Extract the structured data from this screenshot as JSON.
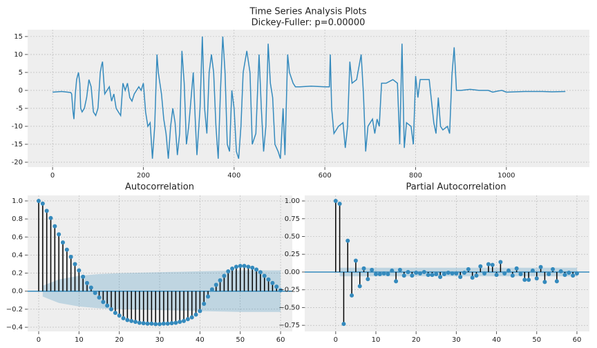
{
  "chart_data": [
    {
      "type": "line",
      "title": "Time Series Analysis Plots",
      "subtitle": "Dickey-Fuller: p=0.00000",
      "color": "#348abd",
      "grid": true,
      "xlim": [
        -55,
        1183
      ],
      "ylim": [
        -21.35,
        16.9
      ],
      "xticks": [
        0,
        200,
        400,
        600,
        800,
        1000
      ],
      "yticks": [
        -20,
        -15,
        -10,
        -5,
        0,
        5,
        10,
        15
      ],
      "x": [
        0,
        20,
        40,
        42,
        45,
        47,
        50,
        53,
        55,
        57,
        60,
        62,
        65,
        70,
        75,
        80,
        85,
        90,
        95,
        100,
        105,
        108,
        110,
        112,
        115,
        120,
        125,
        130,
        135,
        140,
        145,
        150,
        155,
        160,
        165,
        170,
        175,
        180,
        185,
        190,
        195,
        200,
        205,
        210,
        215,
        220,
        225,
        230,
        233,
        240,
        245,
        250,
        255,
        260,
        265,
        270,
        275,
        280,
        285,
        290,
        295,
        300,
        310,
        315,
        318,
        325,
        330,
        335,
        340,
        345,
        350,
        355,
        360,
        365,
        370,
        375,
        380,
        385,
        390,
        395,
        400,
        405,
        410,
        415,
        420,
        428,
        435,
        440,
        448,
        455,
        460,
        465,
        470,
        475,
        480,
        485,
        490,
        497,
        502,
        508,
        512,
        518,
        522,
        530,
        535,
        545,
        570,
        600,
        610,
        612,
        615,
        620,
        625,
        630,
        640,
        645,
        650,
        655,
        660,
        670,
        680,
        685,
        690,
        695,
        700,
        705,
        710,
        715,
        720,
        725,
        735,
        750,
        760,
        765,
        770,
        775,
        780,
        790,
        795,
        800,
        805,
        810,
        820,
        830,
        840,
        845,
        850,
        855,
        860,
        870,
        875,
        880,
        885,
        890,
        900,
        920,
        940,
        960,
        970,
        980,
        990,
        1000,
        1040,
        1080,
        1100,
        1130
      ],
      "values": [
        -0.5,
        -0.3,
        -0.6,
        -1,
        -6,
        -8,
        -1,
        3,
        4,
        5,
        2,
        -5,
        -6,
        -5,
        -2,
        3,
        1,
        -6,
        -7,
        -5,
        5,
        7,
        8,
        4,
        -1,
        0,
        1,
        -3,
        -1,
        -5,
        -6,
        -7,
        2,
        0,
        2,
        -2,
        -3,
        -1,
        0,
        1,
        0,
        2,
        -6,
        -10,
        -9,
        -19,
        -10,
        10,
        5,
        -1,
        -8,
        -12,
        -19,
        -10,
        -5,
        -9,
        -18,
        -12,
        11,
        2,
        -15,
        -10,
        5,
        -10,
        -18,
        -5,
        15,
        -5,
        -12,
        5,
        10,
        5,
        -10,
        -19,
        0,
        15,
        5,
        -15,
        -17,
        0,
        -5,
        -17,
        -19,
        -10,
        5,
        11,
        5,
        -15,
        -12,
        10,
        -5,
        -17,
        -10,
        13,
        2,
        -2,
        -15,
        -17,
        -19,
        -5,
        -18,
        10,
        5,
        2,
        1,
        1,
        1.2,
        1,
        1,
        10,
        -5,
        -12,
        -11,
        -10,
        -9,
        -16,
        -10,
        8,
        2,
        3,
        10,
        -1,
        -17,
        -10,
        -9,
        -8,
        -12,
        -8,
        -10,
        2,
        2,
        3,
        2,
        -15,
        13,
        -16,
        -9,
        -10,
        -15,
        4,
        -2,
        3,
        3,
        3,
        -9,
        -12,
        -2,
        -10,
        -11,
        -10,
        -12,
        4,
        12,
        0,
        0,
        0.3,
        0,
        0,
        -0.5,
        -0.2,
        0,
        -0.5,
        -0.3,
        -0.3,
        -0.4,
        -0.3
      ]
    },
    {
      "type": "stem",
      "title": "Autocorrelation",
      "color": "#348abd",
      "grid": true,
      "xlim": [
        -2.74,
        62.9
      ],
      "ylim": [
        -0.446,
        1.061
      ],
      "xticks": [
        0,
        10,
        20,
        30,
        40,
        50,
        60
      ],
      "yticks": [
        {
          "value": -0.4,
          "label": "−0.4"
        },
        {
          "value": -0.2,
          "label": "−0.2"
        },
        {
          "value": 0,
          "label": "0.0"
        },
        {
          "value": 0.2,
          "label": "0.2"
        },
        {
          "value": 0.4,
          "label": "0.4"
        },
        {
          "value": 0.6,
          "label": "0.6"
        },
        {
          "value": 0.8,
          "label": "0.8"
        },
        {
          "value": 1,
          "label": "1.0"
        }
      ],
      "band": {
        "x": [
          1,
          5,
          10,
          15,
          20,
          30,
          40,
          50,
          60
        ],
        "half_width": [
          0.06,
          0.13,
          0.17,
          0.19,
          0.2,
          0.21,
          0.22,
          0.23,
          0.23
        ]
      },
      "values": [
        1.0,
        0.97,
        0.89,
        0.81,
        0.72,
        0.63,
        0.54,
        0.46,
        0.38,
        0.3,
        0.23,
        0.16,
        0.09,
        0.04,
        -0.02,
        -0.07,
        -0.12,
        -0.16,
        -0.2,
        -0.24,
        -0.27,
        -0.3,
        -0.32,
        -0.33,
        -0.34,
        -0.35,
        -0.355,
        -0.36,
        -0.36,
        -0.365,
        -0.365,
        -0.36,
        -0.36,
        -0.355,
        -0.35,
        -0.34,
        -0.33,
        -0.31,
        -0.29,
        -0.26,
        -0.22,
        -0.14,
        -0.06,
        0.02,
        0.07,
        0.12,
        0.17,
        0.22,
        0.25,
        0.27,
        0.28,
        0.28,
        0.27,
        0.26,
        0.24,
        0.21,
        0.17,
        0.13,
        0.09,
        0.05,
        0.01
      ]
    },
    {
      "type": "stem",
      "title": "Partial Autocorrelation",
      "color": "#348abd",
      "grid": true,
      "xlim": [
        -7.7,
        63.1
      ],
      "ylim": [
        -0.836,
        1.078
      ],
      "xticks": [
        0,
        10,
        20,
        30,
        40,
        50,
        60
      ],
      "yticks": [
        {
          "value": -0.75,
          "label": "−0.75"
        },
        {
          "value": -0.5,
          "label": "−0.50"
        },
        {
          "value": -0.25,
          "label": "−0.25"
        },
        {
          "value": 0,
          "label": "0.00"
        },
        {
          "value": 0.25,
          "label": "0.25"
        },
        {
          "value": 0.5,
          "label": "0.50"
        },
        {
          "value": 0.75,
          "label": "0.75"
        },
        {
          "value": 1,
          "label": "1.00"
        }
      ],
      "band": {
        "x": [
          1,
          60
        ],
        "half_width": [
          0.06,
          0.06
        ]
      },
      "values": [
        1.0,
        0.96,
        -0.73,
        0.44,
        -0.33,
        0.16,
        -0.2,
        0.05,
        -0.1,
        0.03,
        -0.03,
        -0.03,
        -0.02,
        -0.03,
        0.02,
        -0.13,
        0.03,
        -0.05,
        0.0,
        -0.05,
        -0.01,
        -0.02,
        0.0,
        -0.04,
        -0.04,
        -0.03,
        -0.07,
        -0.03,
        -0.01,
        -0.02,
        -0.02,
        -0.07,
        -0.01,
        0.04,
        -0.08,
        -0.05,
        0.08,
        -0.02,
        0.11,
        0.1,
        -0.04,
        0.14,
        -0.02,
        0.02,
        -0.05,
        0.05,
        -0.03,
        -0.11,
        -0.11,
        0.02,
        -0.09,
        0.07,
        -0.14,
        -0.03,
        0.04,
        -0.13,
        0.01,
        -0.04,
        -0.01,
        -0.05,
        -0.02
      ]
    }
  ]
}
